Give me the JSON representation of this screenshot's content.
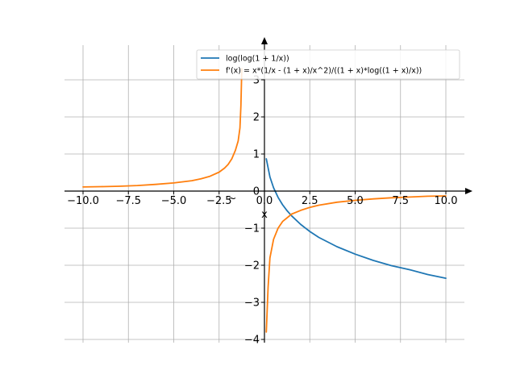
{
  "chart_data": {
    "type": "line",
    "title": "",
    "xlabel": "x",
    "ylabel": "",
    "xlim": [
      -11.0,
      11.0
    ],
    "ylim": [
      -4.0,
      4.0
    ],
    "grid": true,
    "legend_position": "top-right",
    "x_ticks": [
      -10.0,
      -7.5,
      -5.0,
      -2.5,
      0.0,
      2.5,
      5.0,
      7.5,
      10.0
    ],
    "x_tick_labels": [
      "−10.0",
      "−7.5",
      "−5.0",
      "−2.5",
      "0.0",
      "2.5",
      "5.0",
      "7.5",
      "10.0"
    ],
    "y_ticks": [
      -4,
      -3,
      -2,
      -1,
      0,
      1,
      2,
      3
    ],
    "y_tick_labels": [
      "−4",
      "−3",
      "−2",
      "−1",
      "0",
      "1",
      "2",
      "3"
    ],
    "series": [
      {
        "name": "log(log(1 + 1/x))",
        "color": "#1f77b4",
        "points": [
          [
            0.1,
            0.87
          ],
          [
            0.3,
            0.38
          ],
          [
            0.5,
            0.09
          ],
          [
            0.75,
            -0.17
          ],
          [
            1.0,
            -0.37
          ],
          [
            1.25,
            -0.53
          ],
          [
            1.5,
            -0.67
          ],
          [
            2.0,
            -0.9
          ],
          [
            2.5,
            -1.09
          ],
          [
            3.0,
            -1.25
          ],
          [
            4.0,
            -1.5
          ],
          [
            5.0,
            -1.7
          ],
          [
            6.0,
            -1.87
          ],
          [
            7.0,
            -2.01
          ],
          [
            8.0,
            -2.12
          ],
          [
            9.0,
            -2.25
          ],
          [
            10.0,
            -2.35
          ]
        ]
      },
      {
        "name": "f'(x) = x*(1/x - (1 + x)/x^2)/((1 + x)*log((1 + x)/x))",
        "color": "#ff7f0e",
        "segments": [
          [
            [
              -10.0,
              0.11
            ],
            [
              -9.0,
              0.12
            ],
            [
              -8.0,
              0.13
            ],
            [
              -7.0,
              0.15
            ],
            [
              -6.0,
              0.18
            ],
            [
              -5.0,
              0.22
            ],
            [
              -4.0,
              0.28
            ],
            [
              -3.5,
              0.33
            ],
            [
              -3.0,
              0.4
            ],
            [
              -2.5,
              0.51
            ],
            [
              -2.2,
              0.62
            ],
            [
              -2.0,
              0.72
            ],
            [
              -1.8,
              0.87
            ],
            [
              -1.6,
              1.1
            ],
            [
              -1.45,
              1.35
            ],
            [
              -1.35,
              1.7
            ],
            [
              -1.3,
              2.3
            ],
            [
              -1.25,
              3.3
            ]
          ],
          [
            [
              0.1,
              -3.8
            ],
            [
              0.2,
              -2.6
            ],
            [
              0.3,
              -1.8
            ],
            [
              0.5,
              -1.3
            ],
            [
              0.75,
              -1.0
            ],
            [
              1.0,
              -0.82
            ],
            [
              1.5,
              -0.62
            ],
            [
              2.0,
              -0.52
            ],
            [
              2.5,
              -0.44
            ],
            [
              3.0,
              -0.38
            ],
            [
              4.0,
              -0.3
            ],
            [
              5.0,
              -0.25
            ],
            [
              6.0,
              -0.21
            ],
            [
              7.0,
              -0.18
            ],
            [
              8.0,
              -0.16
            ],
            [
              9.0,
              -0.14
            ],
            [
              10.0,
              -0.13
            ]
          ]
        ]
      }
    ],
    "annotations": [
      "~"
    ]
  }
}
